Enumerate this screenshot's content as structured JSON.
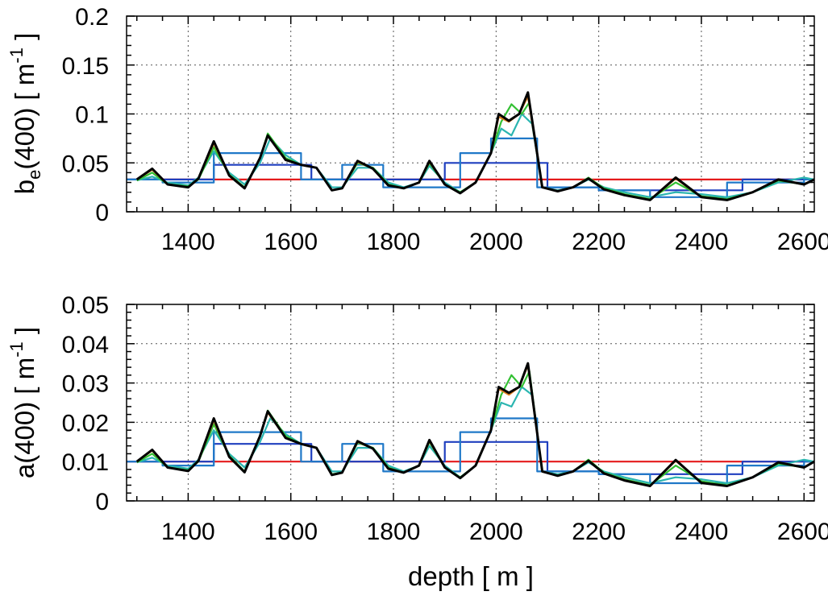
{
  "chart_data": [
    {
      "type": "line",
      "ylabel": "b_e(400) [ m^-1 ]",
      "ylabel_parts": {
        "base": "b",
        "sub": "e",
        "mid": "(400) [ m",
        "sup": "-1",
        "end": " ]"
      },
      "xlabel": "",
      "xlim": [
        1280,
        2620
      ],
      "ylim": [
        0,
        0.2
      ],
      "xticks": [
        1400,
        1600,
        1800,
        2000,
        2200,
        2400,
        2600
      ],
      "xtick_labels": [
        "1400",
        "1600",
        "1800",
        "2000",
        "2200",
        "2400",
        "2600"
      ],
      "yticks": [
        0,
        0.05,
        0.1,
        0.15,
        0.2
      ],
      "ytick_labels": [
        "0",
        "0.05",
        "0.1",
        "0.15",
        "0.2"
      ],
      "grid": true,
      "series": [
        {
          "color": "#e41a1c",
          "style": "constant",
          "x": [
            1280,
            2620
          ],
          "values": [
            0.033,
            0.033
          ]
        },
        {
          "color": "#1f3fbf",
          "x": [
            1280,
            1350,
            1350,
            1450,
            1450,
            1640,
            1640,
            1700,
            1700,
            1900,
            1900,
            2100,
            2100,
            2200,
            2200,
            2480,
            2480,
            2600,
            2600,
            2620
          ],
          "values": [
            0.033,
            0.033,
            0.033,
            0.033,
            0.048,
            0.048,
            0.033,
            0.033,
            0.033,
            0.033,
            0.05,
            0.05,
            0.025,
            0.025,
            0.022,
            0.022,
            0.033,
            0.033,
            0.033,
            0.033
          ]
        },
        {
          "color": "#1f78c8",
          "x": [
            1280,
            1350,
            1350,
            1450,
            1450,
            1560,
            1560,
            1620,
            1620,
            1700,
            1700,
            1780,
            1780,
            1930,
            1930,
            1990,
            1990,
            2080,
            2080,
            2200,
            2200,
            2300,
            2300,
            2450,
            2450,
            2600,
            2600,
            2620
          ],
          "values": [
            0.033,
            0.033,
            0.03,
            0.03,
            0.06,
            0.06,
            0.06,
            0.06,
            0.033,
            0.033,
            0.048,
            0.048,
            0.025,
            0.025,
            0.06,
            0.06,
            0.075,
            0.075,
            0.025,
            0.025,
            0.022,
            0.022,
            0.015,
            0.015,
            0.03,
            0.03,
            0.033,
            0.033
          ]
        },
        {
          "color": "#2bb5b0",
          "x": [
            1300,
            1330,
            1360,
            1400,
            1420,
            1450,
            1480,
            1510,
            1540,
            1560,
            1590,
            1620,
            1650,
            1680,
            1700,
            1730,
            1760,
            1790,
            1820,
            1850,
            1870,
            1900,
            1930,
            1960,
            1990,
            2010,
            2030,
            2050,
            2070,
            2090,
            2120,
            2150,
            2180,
            2210,
            2250,
            2300,
            2350,
            2400,
            2450,
            2500,
            2550,
            2600,
            2620
          ],
          "values": [
            0.032,
            0.036,
            0.03,
            0.027,
            0.035,
            0.062,
            0.04,
            0.028,
            0.05,
            0.075,
            0.058,
            0.048,
            0.045,
            0.025,
            0.025,
            0.045,
            0.045,
            0.03,
            0.025,
            0.03,
            0.047,
            0.03,
            0.02,
            0.03,
            0.06,
            0.085,
            0.078,
            0.1,
            0.09,
            0.025,
            0.022,
            0.025,
            0.033,
            0.025,
            0.02,
            0.015,
            0.02,
            0.018,
            0.015,
            0.02,
            0.03,
            0.035,
            0.033
          ]
        },
        {
          "color": "#33c033",
          "x": [
            1300,
            1330,
            1360,
            1400,
            1420,
            1450,
            1480,
            1510,
            1540,
            1555,
            1590,
            1620,
            1650,
            1680,
            1700,
            1730,
            1760,
            1790,
            1820,
            1850,
            1870,
            1900,
            1930,
            1960,
            1990,
            2010,
            2030,
            2050,
            2065,
            2090,
            2120,
            2150,
            2180,
            2210,
            2250,
            2300,
            2350,
            2400,
            2450,
            2500,
            2550,
            2600,
            2620
          ],
          "values": [
            0.032,
            0.04,
            0.028,
            0.026,
            0.033,
            0.066,
            0.038,
            0.025,
            0.055,
            0.08,
            0.055,
            0.048,
            0.045,
            0.022,
            0.024,
            0.05,
            0.045,
            0.028,
            0.024,
            0.03,
            0.05,
            0.028,
            0.02,
            0.03,
            0.06,
            0.092,
            0.11,
            0.1,
            0.112,
            0.025,
            0.021,
            0.025,
            0.035,
            0.024,
            0.018,
            0.013,
            0.03,
            0.016,
            0.013,
            0.02,
            0.032,
            0.028,
            0.033
          ]
        },
        {
          "color": "#e08020",
          "x": [
            1300,
            1330,
            1360,
            1400,
            1420,
            1450,
            1480,
            1510,
            1540,
            1555,
            1590,
            1620,
            1650,
            1680,
            1700,
            1730,
            1760,
            1790,
            1820,
            1850,
            1870,
            1900,
            1930,
            1960,
            1990,
            2005,
            2025,
            2045,
            2062,
            2090,
            2120,
            2150,
            2180,
            2210,
            2250,
            2300,
            2350,
            2400,
            2450,
            2500,
            2550,
            2600,
            2620
          ],
          "values": [
            0.033,
            0.043,
            0.028,
            0.025,
            0.034,
            0.07,
            0.037,
            0.024,
            0.055,
            0.078,
            0.053,
            0.048,
            0.045,
            0.022,
            0.024,
            0.051,
            0.044,
            0.027,
            0.024,
            0.03,
            0.051,
            0.028,
            0.019,
            0.03,
            0.06,
            0.097,
            0.092,
            0.1,
            0.118,
            0.025,
            0.021,
            0.025,
            0.034,
            0.023,
            0.017,
            0.012,
            0.034,
            0.015,
            0.012,
            0.02,
            0.033,
            0.028,
            0.033
          ]
        },
        {
          "color": "#000000",
          "x": [
            1300,
            1330,
            1360,
            1400,
            1420,
            1450,
            1480,
            1510,
            1540,
            1555,
            1590,
            1620,
            1650,
            1680,
            1700,
            1730,
            1760,
            1790,
            1820,
            1850,
            1870,
            1900,
            1930,
            1960,
            1990,
            2005,
            2025,
            2045,
            2062,
            2090,
            2120,
            2150,
            2180,
            2210,
            2250,
            2300,
            2350,
            2400,
            2450,
            2500,
            2550,
            2600,
            2620
          ],
          "values": [
            0.033,
            0.044,
            0.028,
            0.025,
            0.034,
            0.072,
            0.037,
            0.024,
            0.055,
            0.078,
            0.053,
            0.048,
            0.045,
            0.022,
            0.024,
            0.052,
            0.044,
            0.027,
            0.024,
            0.03,
            0.052,
            0.028,
            0.019,
            0.03,
            0.06,
            0.1,
            0.093,
            0.1,
            0.122,
            0.025,
            0.021,
            0.025,
            0.034,
            0.023,
            0.017,
            0.012,
            0.035,
            0.015,
            0.012,
            0.02,
            0.033,
            0.028,
            0.033
          ]
        }
      ]
    },
    {
      "type": "line",
      "ylabel": "a(400) [ m^-1 ]",
      "ylabel_parts": {
        "base": "a(400) [ m",
        "sub": "",
        "mid": "",
        "sup": "-1",
        "end": " ]"
      },
      "xlabel": "depth [ m ]",
      "xlim": [
        1280,
        2620
      ],
      "ylim": [
        0,
        0.05
      ],
      "xticks": [
        1400,
        1600,
        1800,
        2000,
        2200,
        2400,
        2600
      ],
      "xtick_labels": [
        "1400",
        "1600",
        "1800",
        "2000",
        "2200",
        "2400",
        "2600"
      ],
      "yticks": [
        0,
        0.01,
        0.02,
        0.03,
        0.04,
        0.05
      ],
      "ytick_labels": [
        "0",
        "0.01",
        "0.02",
        "0.03",
        "0.04",
        "0.05"
      ],
      "grid": true,
      "series": [
        {
          "color": "#e41a1c",
          "style": "constant",
          "x": [
            1280,
            2620
          ],
          "values": [
            0.01,
            0.01
          ]
        },
        {
          "color": "#1f3fbf",
          "x": [
            1280,
            1350,
            1350,
            1450,
            1450,
            1640,
            1640,
            1700,
            1700,
            1900,
            1900,
            2100,
            2100,
            2200,
            2200,
            2480,
            2480,
            2600,
            2600,
            2620
          ],
          "values": [
            0.01,
            0.01,
            0.01,
            0.01,
            0.0145,
            0.0145,
            0.01,
            0.01,
            0.01,
            0.01,
            0.015,
            0.015,
            0.0075,
            0.0075,
            0.0068,
            0.0068,
            0.01,
            0.01,
            0.01,
            0.01
          ]
        },
        {
          "color": "#1f78c8",
          "x": [
            1280,
            1350,
            1350,
            1450,
            1450,
            1560,
            1560,
            1620,
            1620,
            1700,
            1700,
            1780,
            1780,
            1930,
            1930,
            1990,
            1990,
            2080,
            2080,
            2200,
            2200,
            2300,
            2300,
            2450,
            2450,
            2600,
            2600,
            2620
          ],
          "values": [
            0.01,
            0.01,
            0.009,
            0.009,
            0.0175,
            0.0175,
            0.0175,
            0.0175,
            0.01,
            0.01,
            0.0145,
            0.0145,
            0.0075,
            0.0075,
            0.0175,
            0.0175,
            0.021,
            0.021,
            0.0075,
            0.0075,
            0.0068,
            0.0068,
            0.0045,
            0.0045,
            0.009,
            0.009,
            0.01,
            0.01
          ]
        },
        {
          "color": "#2bb5b0",
          "x": [
            1300,
            1330,
            1360,
            1400,
            1420,
            1450,
            1480,
            1510,
            1540,
            1560,
            1590,
            1620,
            1650,
            1680,
            1700,
            1730,
            1760,
            1790,
            1820,
            1850,
            1870,
            1900,
            1930,
            1960,
            1990,
            2010,
            2030,
            2050,
            2070,
            2090,
            2120,
            2150,
            2180,
            2210,
            2250,
            2300,
            2350,
            2400,
            2450,
            2500,
            2550,
            2600,
            2620
          ],
          "values": [
            0.0098,
            0.011,
            0.009,
            0.0082,
            0.0105,
            0.018,
            0.012,
            0.0085,
            0.015,
            0.021,
            0.017,
            0.0145,
            0.0135,
            0.0075,
            0.0075,
            0.0135,
            0.0135,
            0.009,
            0.0075,
            0.009,
            0.014,
            0.009,
            0.006,
            0.009,
            0.018,
            0.025,
            0.024,
            0.029,
            0.027,
            0.0075,
            0.0068,
            0.0075,
            0.0098,
            0.0075,
            0.006,
            0.0045,
            0.006,
            0.0055,
            0.0045,
            0.006,
            0.009,
            0.0105,
            0.01
          ]
        },
        {
          "color": "#33c033",
          "x": [
            1300,
            1330,
            1360,
            1400,
            1420,
            1450,
            1480,
            1510,
            1540,
            1555,
            1590,
            1620,
            1650,
            1680,
            1700,
            1730,
            1760,
            1790,
            1820,
            1850,
            1870,
            1900,
            1930,
            1960,
            1990,
            2010,
            2030,
            2050,
            2065,
            2090,
            2120,
            2150,
            2180,
            2210,
            2250,
            2300,
            2350,
            2400,
            2450,
            2500,
            2550,
            2600,
            2620
          ],
          "values": [
            0.0098,
            0.012,
            0.0085,
            0.0078,
            0.01,
            0.0195,
            0.0115,
            0.0075,
            0.0165,
            0.023,
            0.0165,
            0.0145,
            0.0135,
            0.0068,
            0.0072,
            0.0148,
            0.0135,
            0.0085,
            0.0072,
            0.009,
            0.015,
            0.0085,
            0.006,
            0.009,
            0.018,
            0.027,
            0.032,
            0.029,
            0.033,
            0.0075,
            0.0065,
            0.0075,
            0.0105,
            0.0072,
            0.0055,
            0.004,
            0.009,
            0.005,
            0.004,
            0.006,
            0.0095,
            0.0085,
            0.01
          ]
        },
        {
          "color": "#e08020",
          "x": [
            1300,
            1330,
            1360,
            1400,
            1420,
            1450,
            1480,
            1510,
            1540,
            1555,
            1590,
            1620,
            1650,
            1680,
            1700,
            1730,
            1760,
            1790,
            1820,
            1850,
            1870,
            1900,
            1930,
            1960,
            1990,
            2005,
            2025,
            2045,
            2062,
            2090,
            2120,
            2150,
            2180,
            2210,
            2250,
            2300,
            2350,
            2400,
            2450,
            2500,
            2550,
            2600,
            2620
          ],
          "values": [
            0.01,
            0.0128,
            0.0085,
            0.0076,
            0.0102,
            0.0205,
            0.0112,
            0.0073,
            0.0165,
            0.0225,
            0.016,
            0.0145,
            0.0135,
            0.0066,
            0.0072,
            0.015,
            0.0133,
            0.0082,
            0.0072,
            0.009,
            0.0152,
            0.0085,
            0.0058,
            0.009,
            0.018,
            0.0285,
            0.027,
            0.029,
            0.0345,
            0.0075,
            0.0064,
            0.0075,
            0.0102,
            0.007,
            0.0052,
            0.0038,
            0.0102,
            0.0046,
            0.0038,
            0.006,
            0.0098,
            0.0085,
            0.01
          ]
        },
        {
          "color": "#000000",
          "x": [
            1300,
            1330,
            1360,
            1400,
            1420,
            1450,
            1480,
            1510,
            1540,
            1555,
            1590,
            1620,
            1650,
            1680,
            1700,
            1730,
            1760,
            1790,
            1820,
            1850,
            1870,
            1900,
            1930,
            1960,
            1990,
            2005,
            2025,
            2045,
            2062,
            2090,
            2120,
            2150,
            2180,
            2210,
            2250,
            2300,
            2350,
            2400,
            2450,
            2500,
            2550,
            2600,
            2620
          ],
          "values": [
            0.01,
            0.013,
            0.0085,
            0.0076,
            0.0102,
            0.021,
            0.0112,
            0.0073,
            0.0165,
            0.0228,
            0.016,
            0.0145,
            0.0135,
            0.0066,
            0.0072,
            0.0152,
            0.0133,
            0.0082,
            0.0072,
            0.009,
            0.0155,
            0.0085,
            0.0058,
            0.009,
            0.018,
            0.029,
            0.0275,
            0.029,
            0.035,
            0.0075,
            0.0064,
            0.0075,
            0.0102,
            0.007,
            0.0052,
            0.0038,
            0.0104,
            0.0046,
            0.0038,
            0.006,
            0.0098,
            0.0085,
            0.01
          ]
        }
      ]
    }
  ]
}
